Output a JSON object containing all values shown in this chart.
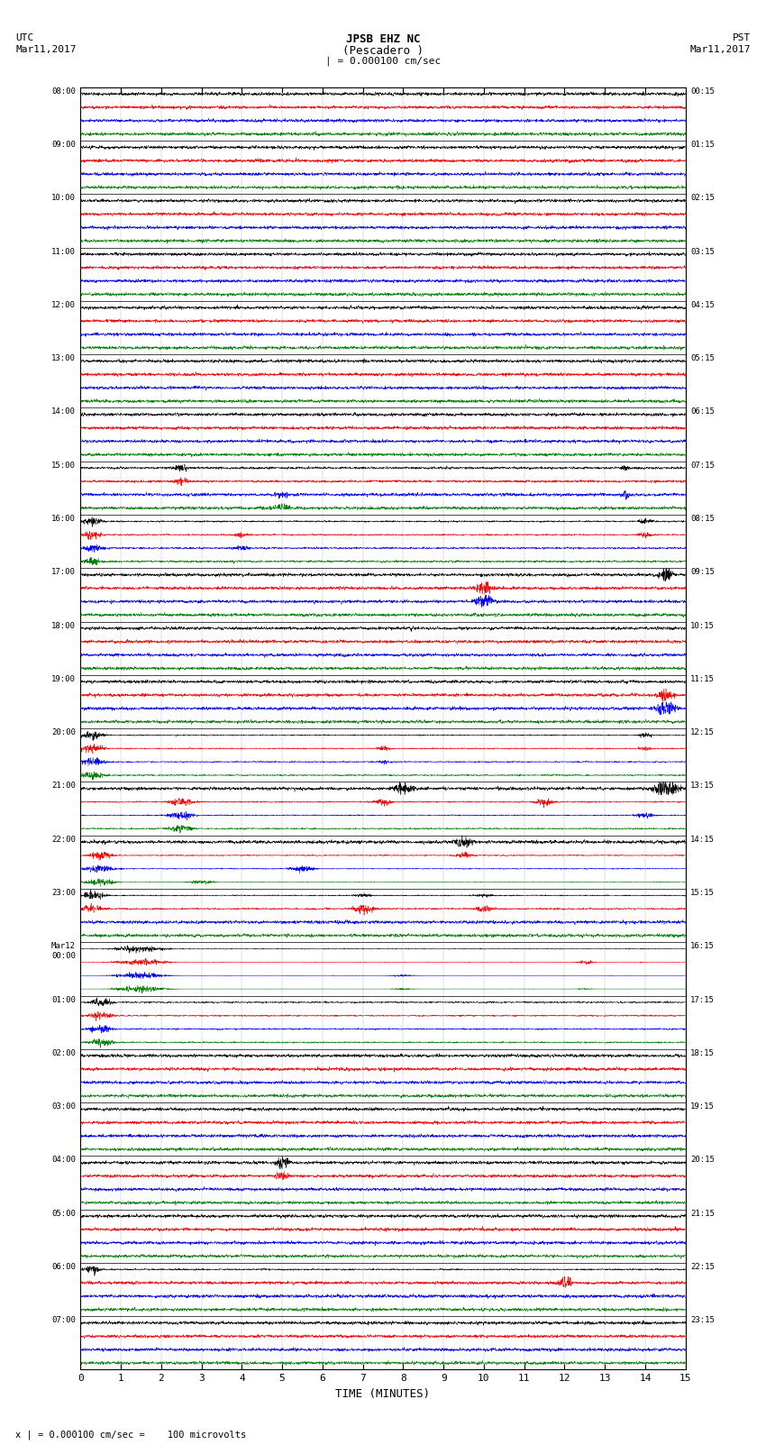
{
  "title_line1": "JPSB EHZ NC",
  "title_line2": "(Pescadero )",
  "title_line3": "| = 0.000100 cm/sec",
  "utc_label": "UTC",
  "utc_date": "Mar11,2017",
  "pst_label": "PST",
  "pst_date": "Mar11,2017",
  "xlabel": "TIME (MINUTES)",
  "footer": "x | = 0.000100 cm/sec =    100 microvolts",
  "left_times_utc": [
    "08:00",
    "09:00",
    "10:00",
    "11:00",
    "12:00",
    "13:00",
    "14:00",
    "15:00",
    "16:00",
    "17:00",
    "18:00",
    "19:00",
    "20:00",
    "21:00",
    "22:00",
    "23:00",
    "Mar12\n00:00",
    "01:00",
    "02:00",
    "03:00",
    "04:00",
    "05:00",
    "06:00",
    "07:00"
  ],
  "right_times_pst": [
    "00:15",
    "01:15",
    "02:15",
    "03:15",
    "04:15",
    "05:15",
    "06:15",
    "07:15",
    "08:15",
    "09:15",
    "10:15",
    "11:15",
    "12:15",
    "13:15",
    "14:15",
    "15:15",
    "16:15",
    "17:15",
    "18:15",
    "19:15",
    "20:15",
    "21:15",
    "22:15",
    "23:15"
  ],
  "n_rows": 24,
  "traces_per_row": 4,
  "trace_colors": [
    "black",
    "red",
    "blue",
    "green"
  ],
  "bg_color": "white",
  "x_min": 0,
  "x_max": 15,
  "x_ticks": [
    0,
    1,
    2,
    3,
    4,
    5,
    6,
    7,
    8,
    9,
    10,
    11,
    12,
    13,
    14,
    15
  ],
  "fig_width": 8.5,
  "fig_height": 16.13,
  "dpi": 100
}
